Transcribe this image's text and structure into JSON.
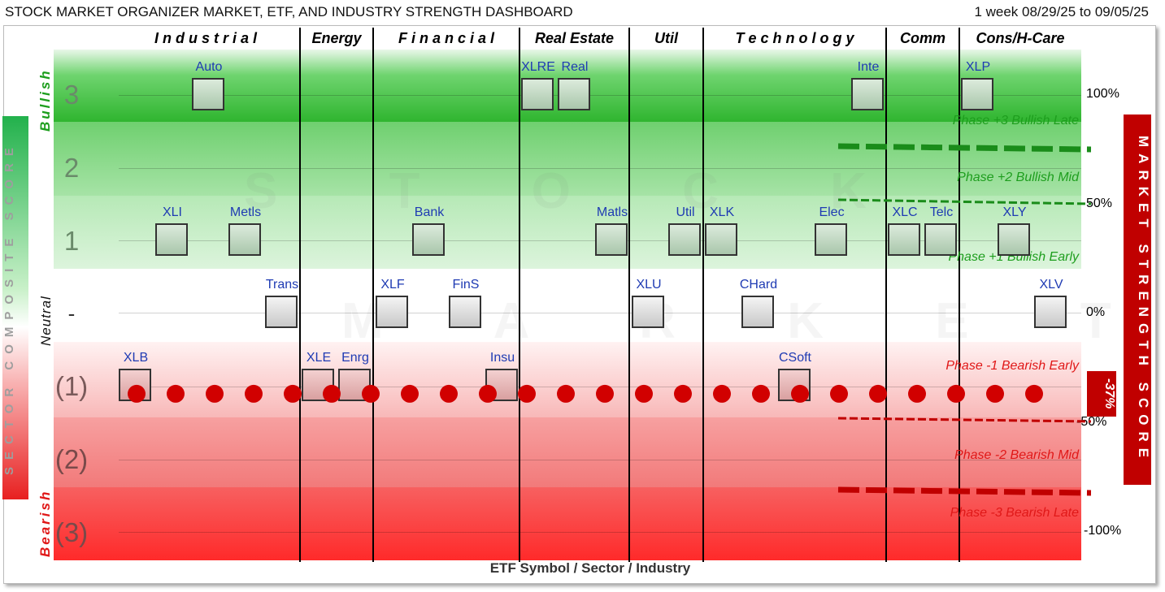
{
  "header": {
    "title": "STOCK MARKET ORGANIZER MARKET, ETF, AND INDUSTRY STRENGTH DASHBOARD",
    "date_range": "1 week 08/29/25 to 09/05/25"
  },
  "chart_data": {
    "type": "scatter",
    "title": "STOCK MARKET ORGANIZER MARKET, ETF, AND INDUSTRY STRENGTH DASHBOARD",
    "subtitle": "1 week 08/29/25 to 09/05/25",
    "xlabel": "ETF Symbol / Sector / Industry",
    "ylabel_left": "SECTOR COMPOSITE SCORE",
    "ylabel_right": "MARKET STRENGTH SCORE",
    "left_side_words": {
      "top": "Bullish",
      "middle": "Neutral",
      "bottom": "Bearish"
    },
    "row_labels": [
      "3",
      "2",
      "1",
      "-",
      "(1)",
      "(2)",
      "(3)"
    ],
    "right_ticks": [
      "100%",
      "50%",
      "0%",
      "-50%",
      "-100%"
    ],
    "sectors": [
      "I n d u s t r i a l",
      "Energy",
      "F i n a n c i a l",
      "Real Estate",
      "Util",
      "T e c h n o l o g y",
      "Comm",
      "Cons/H-Care"
    ],
    "phases": [
      {
        "label": "Phase +3 Bullish Late",
        "color": "#1e9e1e"
      },
      {
        "label": "Phase +2 Bullish Mid",
        "color": "#1e9e1e"
      },
      {
        "label": "Phase +1 Bullish Early",
        "color": "#1e9e1e"
      },
      {
        "label": "Phase -1 Bearish Early",
        "color": "#e01818"
      },
      {
        "label": "Phase -2 Bearish Mid",
        "color": "#e01818"
      },
      {
        "label": "Phase -3 Bearish Late",
        "color": "#e01818"
      }
    ],
    "market_strength_score": -37,
    "market_strength_label": "-37%",
    "items": [
      {
        "symbol": "Auto",
        "score": 3
      },
      {
        "symbol": "XLRE",
        "score": 3
      },
      {
        "symbol": "Real",
        "score": 3
      },
      {
        "symbol": "Inte",
        "score": 3
      },
      {
        "symbol": "XLP",
        "score": 3
      },
      {
        "symbol": "XLI",
        "score": 1
      },
      {
        "symbol": "Metls",
        "score": 1
      },
      {
        "symbol": "Bank",
        "score": 1
      },
      {
        "symbol": "Matls",
        "score": 1
      },
      {
        "symbol": "Util",
        "score": 1
      },
      {
        "symbol": "XLK",
        "score": 1
      },
      {
        "symbol": "Elec",
        "score": 1
      },
      {
        "symbol": "XLC",
        "score": 1
      },
      {
        "symbol": "Telc",
        "score": 1
      },
      {
        "symbol": "XLY",
        "score": 1
      },
      {
        "symbol": "Trans",
        "score": 0
      },
      {
        "symbol": "XLF",
        "score": 0
      },
      {
        "symbol": "FinS",
        "score": 0
      },
      {
        "symbol": "XLU",
        "score": 0
      },
      {
        "symbol": "CHard",
        "score": 0
      },
      {
        "symbol": "XLV",
        "score": 0
      },
      {
        "symbol": "XLB",
        "score": -1
      },
      {
        "symbol": "XLE",
        "score": -1
      },
      {
        "symbol": "Enrg",
        "score": -1
      },
      {
        "symbol": "Insu",
        "score": -1
      },
      {
        "symbol": "CSoft",
        "score": -1
      }
    ],
    "colors": {
      "bull": "#22b14c",
      "bear": "#e01818",
      "dots": "#d10000",
      "label": "#1f3bb3"
    },
    "grid": true
  }
}
